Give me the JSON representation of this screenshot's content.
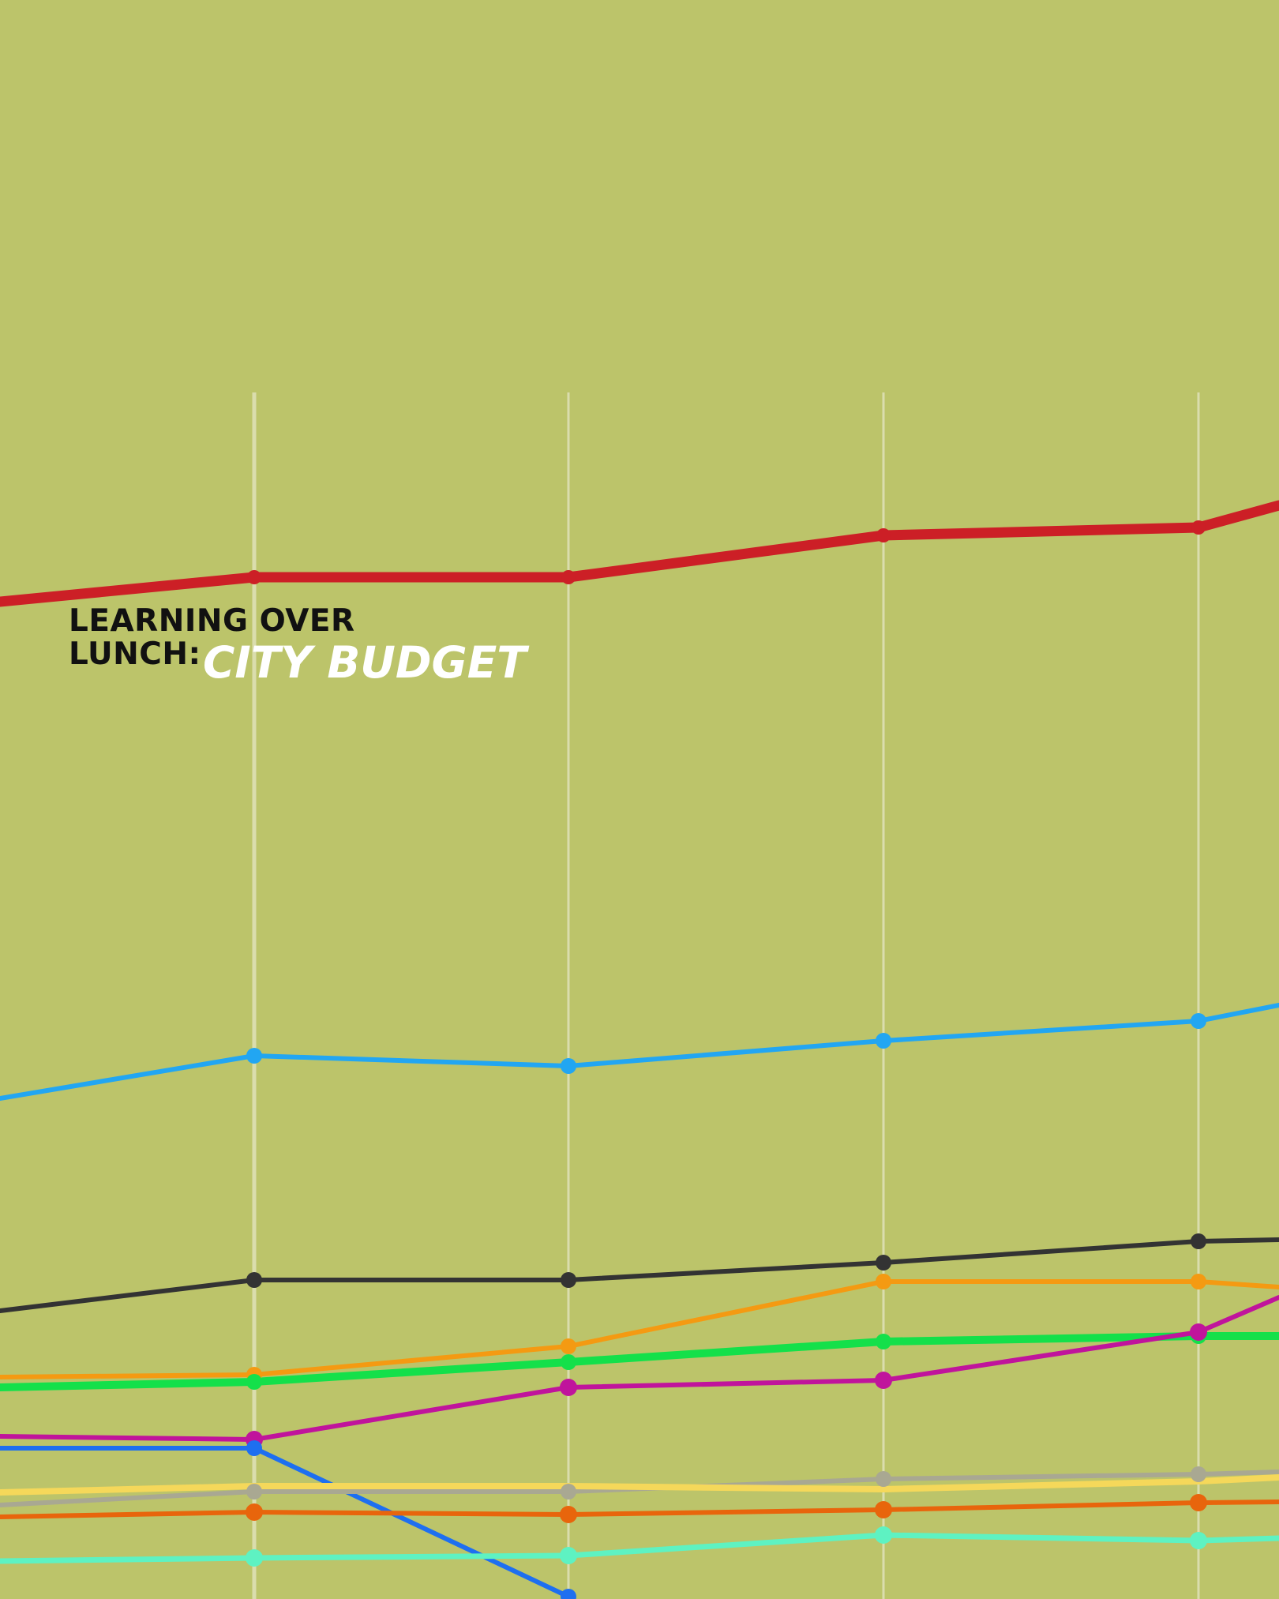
{
  "poster": {
    "title_line1": "LEARNING OVER",
    "title_line2": "LUNCH:",
    "title_highlight": "CITY BUDGET"
  }
}
